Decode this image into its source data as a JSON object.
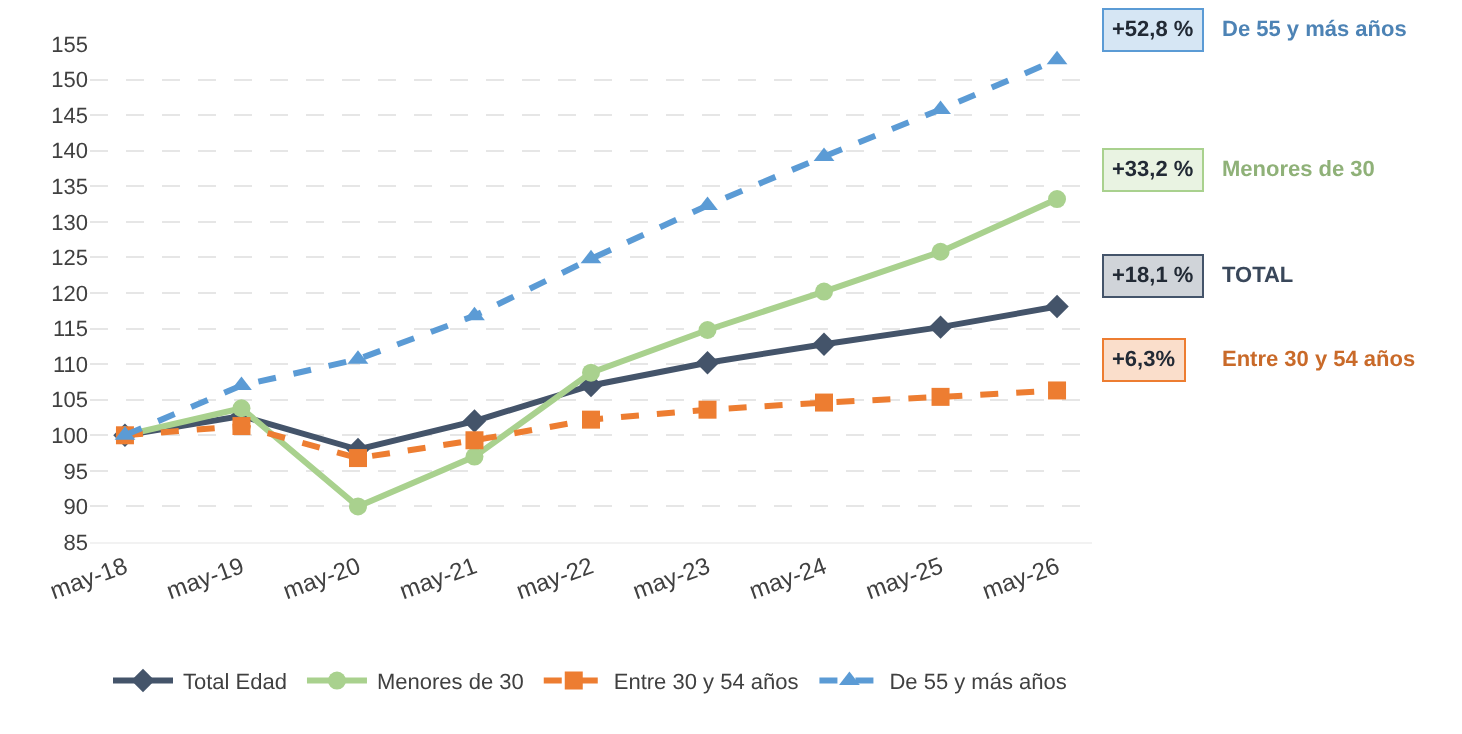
{
  "chart_data": {
    "type": "line",
    "categories": [
      "may-18",
      "may-19",
      "may-20",
      "may-21",
      "may-22",
      "may-23",
      "may-24",
      "may-25",
      "may-26"
    ],
    "series": [
      {
        "name": "Total Edad",
        "color": "#44546a",
        "marker": "diamond",
        "line_style": "solid",
        "values": [
          100,
          102.7,
          98,
          102,
          107,
          110.2,
          112.8,
          115.2,
          118.1
        ]
      },
      {
        "name": "Menores de 30",
        "color": "#a9d18e",
        "marker": "circle",
        "line_style": "solid",
        "values": [
          100,
          103.8,
          90,
          97,
          108.8,
          114.8,
          120.2,
          125.8,
          133.2
        ]
      },
      {
        "name": "Entre 30 y 54 años",
        "color": "#ed7d31",
        "marker": "square",
        "line_style": "dashed",
        "values": [
          100,
          101.3,
          96.8,
          99.3,
          102.2,
          103.6,
          104.6,
          105.4,
          106.3
        ]
      },
      {
        "name": "De 55 y más años",
        "color": "#5b9bd5",
        "marker": "triangle",
        "line_style": "dashed",
        "values": [
          100,
          107,
          110.7,
          116.8,
          124.8,
          132.3,
          139.2,
          145.8,
          152.8
        ]
      }
    ],
    "annotations": [
      "+18,1 %",
      "TOTAL",
      "+33,2 %",
      "Menores de 30",
      "+6,3%",
      "Entre 30 y 54 años",
      "+52,8 %",
      "De 55 y más años"
    ],
    "ylim": [
      85,
      155
    ],
    "yticks": [
      85,
      90,
      95,
      100,
      105,
      110,
      115,
      120,
      125,
      130,
      135,
      140,
      145,
      150,
      155
    ],
    "grid": "y",
    "legend": "bottom"
  }
}
